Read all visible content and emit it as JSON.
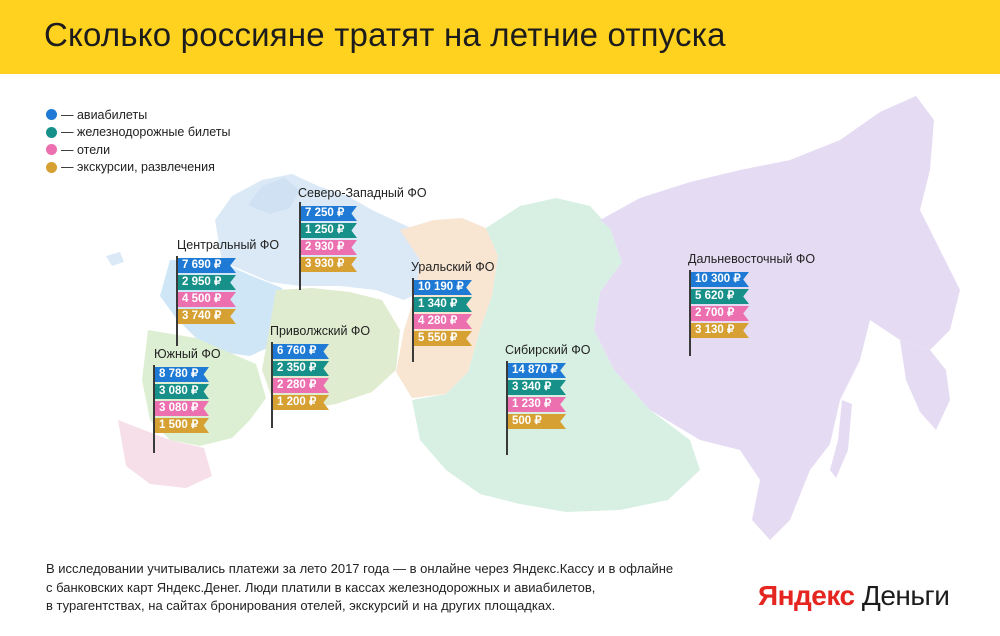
{
  "title": "Сколько россияне тратят на летние отпуска",
  "colors": {
    "header_bg": "#ffd21f",
    "flights": "#1e7ad4",
    "rail": "#17908a",
    "hotels": "#ec6fb0",
    "excursions": "#d6a033"
  },
  "legend": [
    {
      "key": "flights",
      "label": "— авиабилеты"
    },
    {
      "key": "rail",
      "label": "— железнодорожные билеты"
    },
    {
      "key": "hotels",
      "label": "— отели"
    },
    {
      "key": "excursions",
      "label": "— экскурсии, развлечения"
    }
  ],
  "regions": [
    {
      "name": "Северо-Западный ФО",
      "values": [
        "7 250 ₽",
        "1 250 ₽",
        "2 930 ₽",
        "3 930 ₽"
      ]
    },
    {
      "name": "Центральный ФО",
      "values": [
        "7 690 ₽",
        "2 950 ₽",
        "4 500 ₽",
        "3 740 ₽"
      ]
    },
    {
      "name": "Уральский ФО",
      "values": [
        "10 190 ₽",
        "1 340 ₽",
        "4 280 ₽",
        "5 550 ₽"
      ]
    },
    {
      "name": "Приволжский ФО",
      "values": [
        "6 760 ₽",
        "2 350 ₽",
        "2 280 ₽",
        "1 200 ₽"
      ]
    },
    {
      "name": "Южный ФО",
      "values": [
        "8 780 ₽",
        "3 080 ₽",
        "3 080 ₽",
        "1 500 ₽"
      ]
    },
    {
      "name": "Сибирский ФО",
      "values": [
        "14 870 ₽",
        "3 340 ₽",
        "1 230 ₽",
        "500 ₽"
      ]
    },
    {
      "name": "Дальневосточный ФО",
      "values": [
        "10 300 ₽",
        "5 620 ₽",
        "2 700 ₽",
        "3 130 ₽"
      ]
    }
  ],
  "footnote": {
    "line1": "В исследовании учитывались платежи за лето 2017 года — в онлайне через Яндекс.Кассу и в офлайне",
    "line2": "с банковских карт Яндекс.Денег. Люди платили в кассах железнодорожных и авиабилетов,",
    "line3": "в турагентствах, на сайтах бронирования отелей, экскурсий и на других площадках."
  },
  "brand": {
    "part1": "Яндекс",
    "part2": "Деньги"
  }
}
